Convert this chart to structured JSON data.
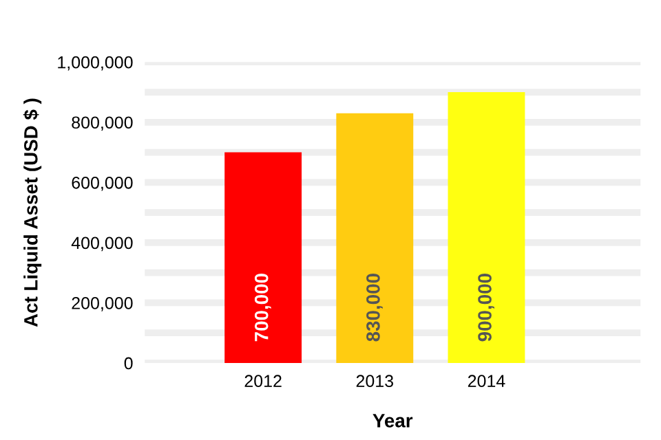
{
  "chart_data": {
    "type": "bar",
    "xlabel": "Year",
    "ylabel": "Act Liquid Asset (USD $ )",
    "categories": [
      "2012",
      "2013",
      "2014"
    ],
    "values": [
      700000,
      830000,
      900000
    ],
    "colors": [
      "#ff0000",
      "#ffcc11",
      "#ffff11"
    ],
    "value_labels": [
      "700,000",
      "830,000",
      "900,000"
    ],
    "ylim": [
      0,
      1000000
    ],
    "yticks": [
      {
        "value": 0,
        "label": "0"
      },
      {
        "value": 100000,
        "label": null
      },
      {
        "value": 200000,
        "label": "200,000"
      },
      {
        "value": 300000,
        "label": null
      },
      {
        "value": 400000,
        "label": "400,000"
      },
      {
        "value": 500000,
        "label": null
      },
      {
        "value": 600000,
        "label": "600,000"
      },
      {
        "value": 700000,
        "label": null
      },
      {
        "value": 800000,
        "label": "800,000"
      },
      {
        "value": 900000,
        "label": null
      },
      {
        "value": 1000000,
        "label": "1,000,000"
      }
    ],
    "grid": "y"
  }
}
